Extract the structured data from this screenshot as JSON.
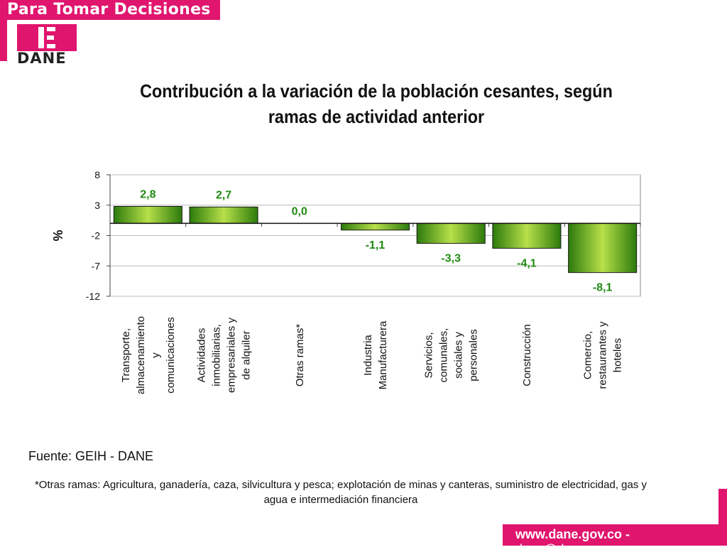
{
  "header": {
    "banner_text": "Para Tomar Decisiones",
    "logo_text": "DANE"
  },
  "title_line1": "Contribución a la variación de la población cesantes, según",
  "title_line2": "ramas de actividad anterior",
  "colors": {
    "brand": "#e0156e",
    "bar_light": "#b8e04a",
    "bar_dark": "#2c7a0c",
    "label_green": "#1f8a12"
  },
  "chart_data": {
    "type": "bar",
    "ylabel": "%",
    "ylim": [
      -12,
      8
    ],
    "yticks": [
      8,
      3,
      -2,
      -7,
      -12
    ],
    "grid": true,
    "categories": [
      [
        "Transporte,",
        "almacenamiento",
        "y",
        "comunicaciones"
      ],
      [
        "Actividades",
        "inmobiliarias,",
        "empresariales y",
        "de alquiler"
      ],
      [
        "Otras ramas*"
      ],
      [
        "Industria",
        "Manufacturera"
      ],
      [
        "Servicios,",
        "comunales,",
        "sociales y",
        "personales"
      ],
      [
        "Construcción"
      ],
      [
        "Comercio,",
        "restaurantes y",
        "hoteles"
      ]
    ],
    "values": [
      2.8,
      2.7,
      0.0,
      -1.1,
      -3.3,
      -4.1,
      -8.1
    ],
    "data_labels": [
      "2,8",
      "2,7",
      "0,0",
      "-1,1",
      "-3,3",
      "-4,1",
      "-8,1"
    ]
  },
  "source_text": "Fuente: GEIH - DANE",
  "footnote": "*Otras ramas: Agricultura, ganadería, caza, silvicultura y pesca; explotación de minas y canteras, suministro de electricidad, gas y agua e intermediación financiera",
  "footer": {
    "website": "www.dane.gov.co",
    "email": "dane@dane.gov.co",
    "separator": " - "
  }
}
